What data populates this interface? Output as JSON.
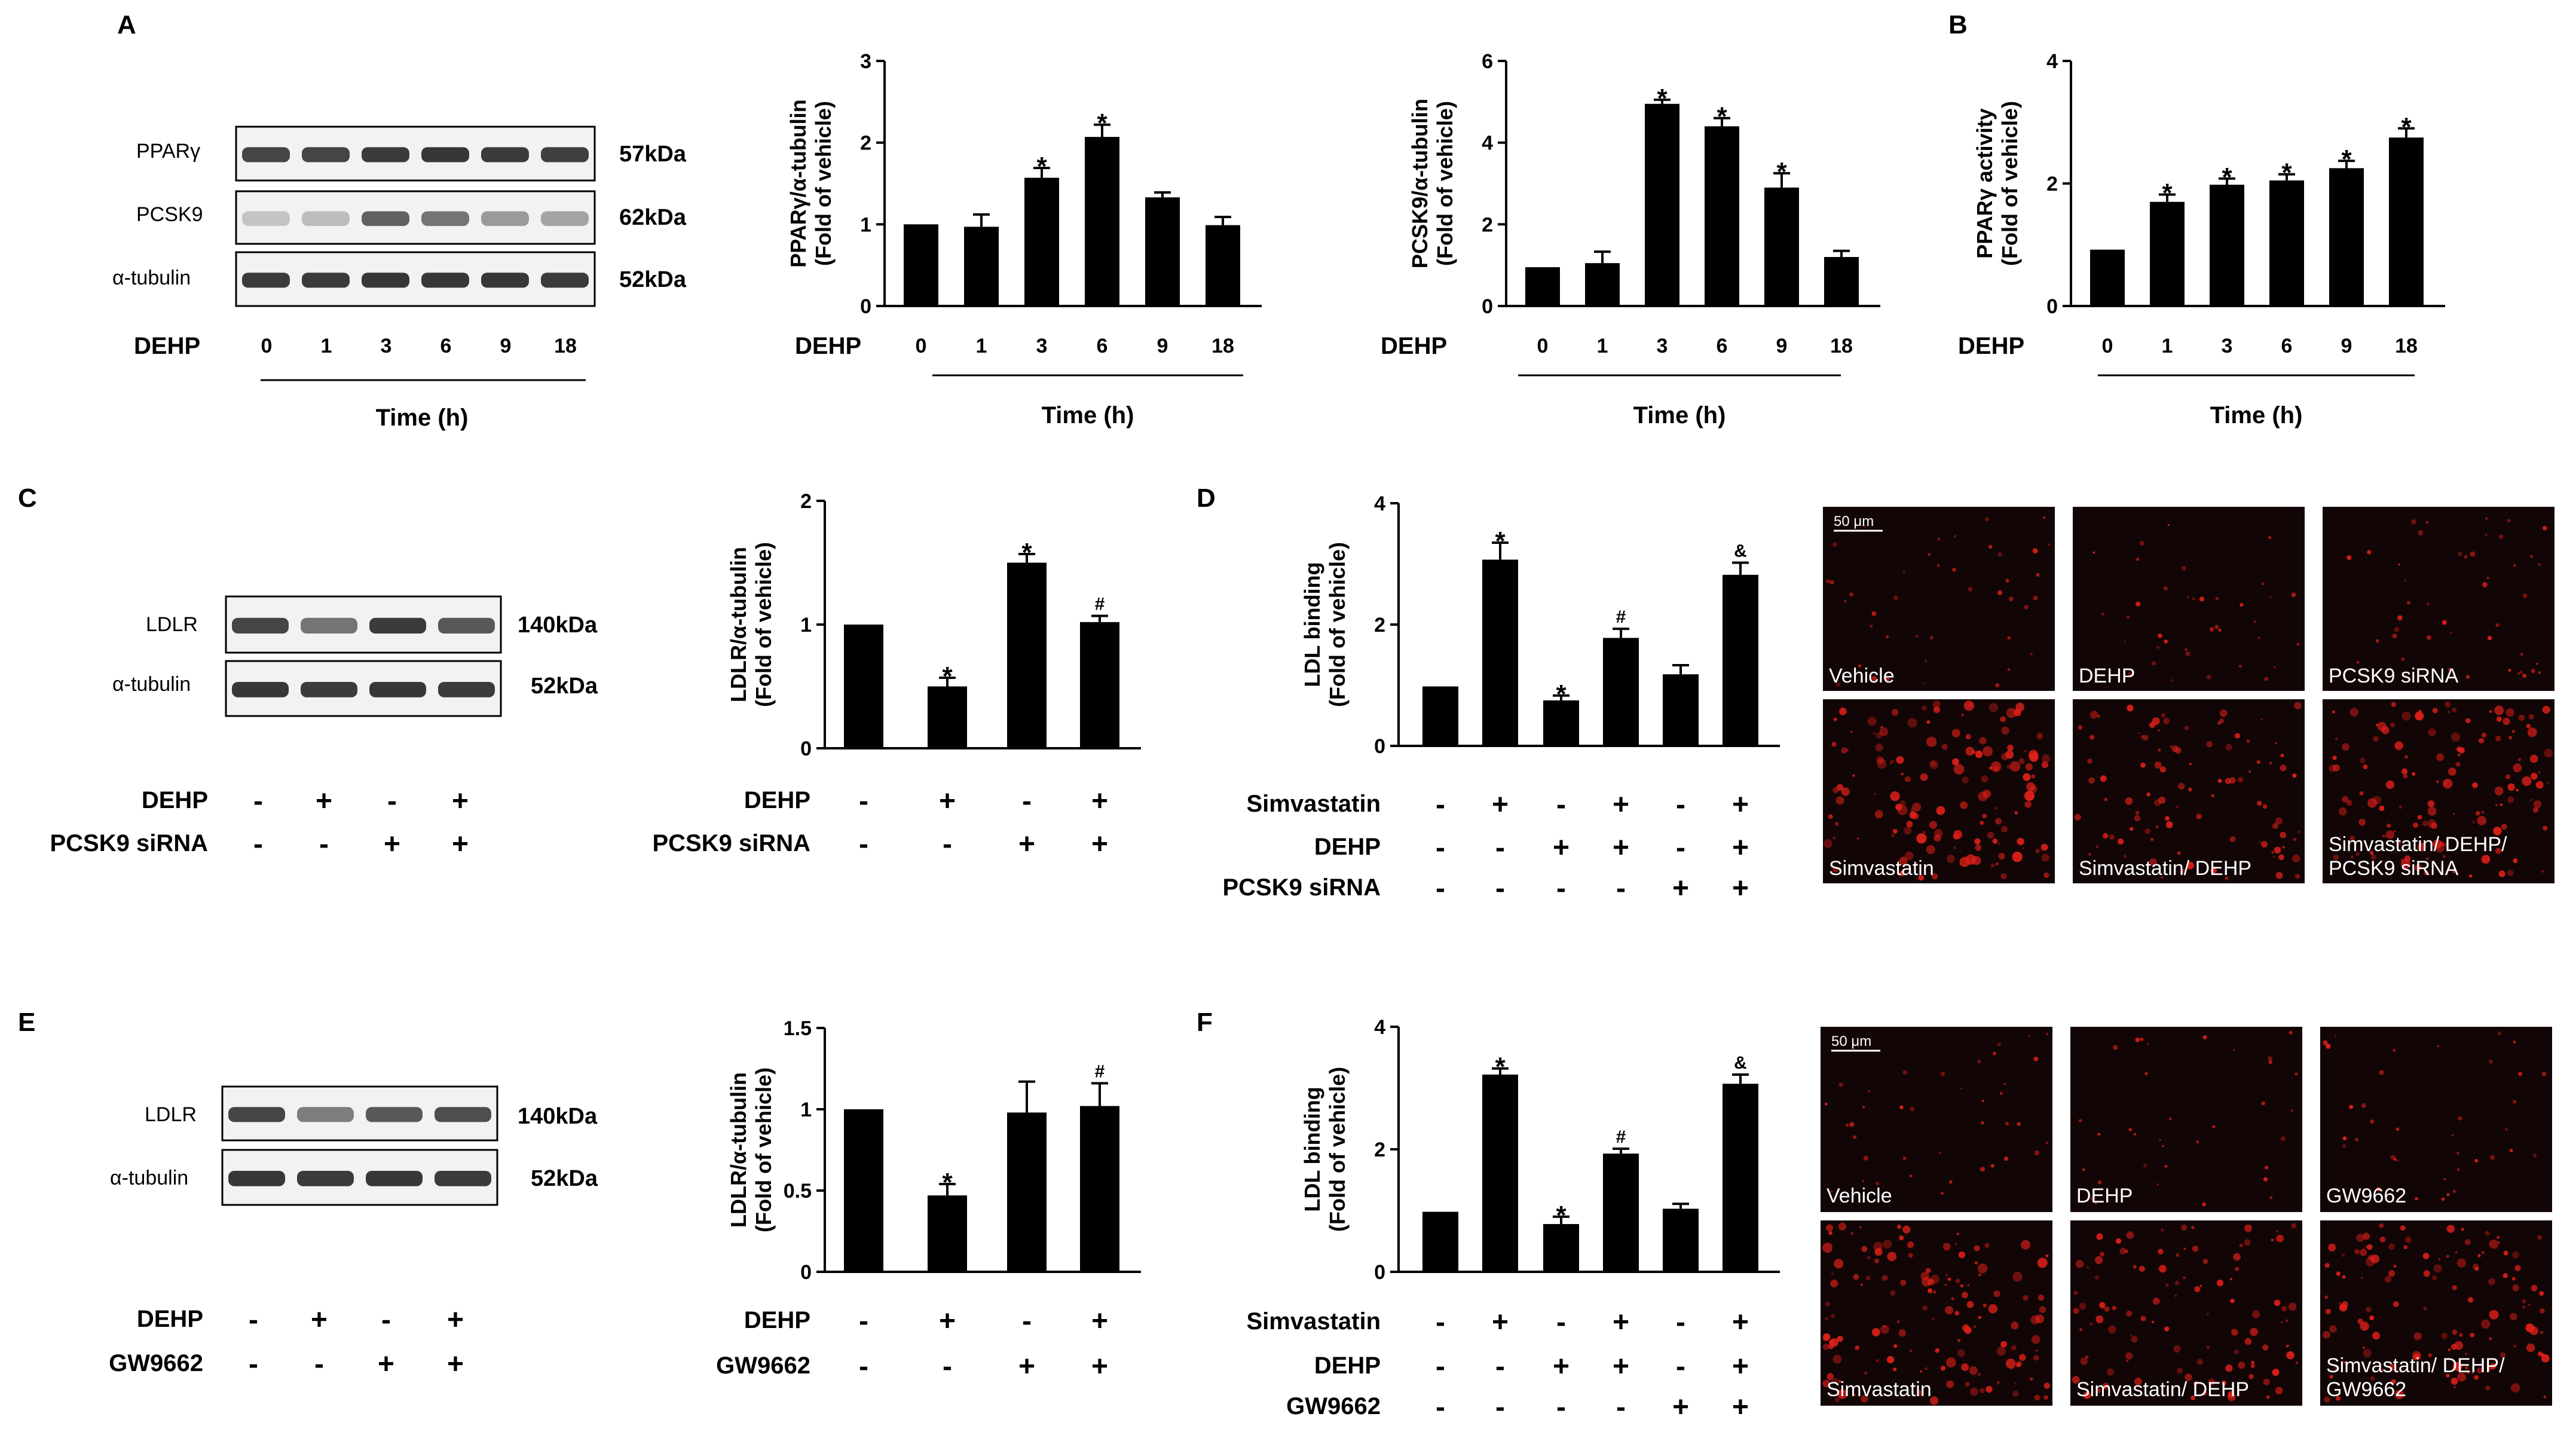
{
  "panels": {
    "A": "A",
    "B": "B",
    "C": "C",
    "D": "D",
    "E": "E",
    "F": "F"
  },
  "colors": {
    "bar": "#000000",
    "micro_bg": "#120505",
    "dot": "#e0201a"
  },
  "blots": {
    "A": {
      "bands": [
        "PPARγ",
        "PCSK9",
        "α-tubulin"
      ],
      "kda": [
        "57kDa",
        "62kDa",
        "52kDa"
      ],
      "lanes": [
        "0",
        "1",
        "3",
        "6",
        "9",
        "18"
      ],
      "row_label": "DEHP",
      "xlabel": "Time (h)"
    },
    "C": {
      "bands": [
        "LDLR",
        "α-tubulin"
      ],
      "kda": [
        "140kDa",
        "52kDa"
      ],
      "rows": [
        {
          "label": "DEHP",
          "values": [
            "-",
            "+",
            "-",
            "+"
          ]
        },
        {
          "label": "PCSK9 siRNA",
          "values": [
            "-",
            "-",
            "+",
            "+"
          ]
        }
      ]
    },
    "E": {
      "bands": [
        "LDLR",
        "α-tubulin"
      ],
      "kda": [
        "140kDa",
        "52kDa"
      ],
      "rows": [
        {
          "label": "DEHP",
          "values": [
            "-",
            "+",
            "-",
            "+"
          ]
        },
        {
          "label": "GW9662",
          "values": [
            "-",
            "-",
            "+",
            "+"
          ]
        }
      ]
    }
  },
  "micrographs": {
    "D": {
      "scale_bar": "50 μm",
      "labels": [
        "Vehicle",
        "DEHP",
        "PCSK9 siRNA",
        "Simvastatin",
        "Simvastatin/ DEHP",
        "Simvastatin/ DEHP/ PCSK9 siRNA"
      ],
      "intensity": [
        0.15,
        0.12,
        0.18,
        0.9,
        0.55,
        0.8
      ]
    },
    "F": {
      "scale_bar": "50 μm",
      "labels": [
        "Vehicle",
        "DEHP",
        "GW9662",
        "Simvastatin",
        "Simvastatin/ DEHP",
        "Simvastatin/ DEHP/ GW9662"
      ],
      "intensity": [
        0.13,
        0.1,
        0.12,
        0.85,
        0.6,
        0.75
      ]
    }
  },
  "chart_data": [
    {
      "id": "A1",
      "type": "bar",
      "ylabel": "PPARγ/α-tubulin (Fold of vehicle)",
      "ylim": [
        0,
        3
      ],
      "yticks": [
        "0",
        "1",
        "2",
        "3"
      ],
      "categories": [
        "0",
        "1",
        "3",
        "6",
        "9",
        "18"
      ],
      "values": [
        1.0,
        0.97,
        1.57,
        2.07,
        1.33,
        0.99
      ],
      "errors": [
        0,
        0.15,
        0.12,
        0.15,
        0.06,
        0.1
      ],
      "marks": [
        "",
        "",
        "*",
        "*",
        "",
        ""
      ],
      "xaxis_label": "DEHP",
      "xlabel": "Time (h)"
    },
    {
      "id": "A2",
      "type": "bar",
      "ylabel": "PCSK9/α-tubulin (Fold of vehicle)",
      "ylim": [
        0,
        6
      ],
      "yticks": [
        "0",
        "2",
        "4",
        "6"
      ],
      "categories": [
        "0",
        "1",
        "3",
        "6",
        "9",
        "18"
      ],
      "values": [
        0.95,
        1.05,
        4.95,
        4.4,
        2.9,
        1.2
      ],
      "errors": [
        0,
        0.28,
        0.1,
        0.2,
        0.35,
        0.15
      ],
      "marks": [
        "",
        "",
        "*",
        "*",
        "*",
        ""
      ],
      "xaxis_label": "DEHP",
      "xlabel": "Time (h)"
    },
    {
      "id": "B",
      "type": "bar",
      "ylabel": "PPARγ activity (Fold of vehicle)",
      "ylim": [
        0,
        4
      ],
      "yticks": [
        "0",
        "2",
        "4"
      ],
      "categories": [
        "0",
        "1",
        "3",
        "6",
        "9",
        "18"
      ],
      "values": [
        0.92,
        1.7,
        1.98,
        2.05,
        2.25,
        2.75
      ],
      "errors": [
        0,
        0.12,
        0.1,
        0.1,
        0.12,
        0.15
      ],
      "marks": [
        "",
        "*",
        "*",
        "*",
        "*",
        "*"
      ],
      "xaxis_label": "DEHP",
      "xlabel": "Time (h)"
    },
    {
      "id": "C",
      "type": "bar",
      "ylabel": "LDLR/α-tubulin (Fold of vehicle)",
      "ylim": [
        0,
        2
      ],
      "yticks": [
        "0",
        "1",
        "2"
      ],
      "values": [
        1.0,
        0.5,
        1.5,
        1.02
      ],
      "errors": [
        0,
        0.07,
        0.07,
        0.05
      ],
      "marks": [
        "",
        "*",
        "*",
        "#"
      ],
      "rows": [
        {
          "label": "DEHP",
          "values": [
            "-",
            "+",
            "-",
            "+"
          ]
        },
        {
          "label": "PCSK9 siRNA",
          "values": [
            "-",
            "-",
            "+",
            "+"
          ]
        }
      ]
    },
    {
      "id": "D",
      "type": "bar",
      "ylabel": "LDL binding (Fold of vehicle)",
      "ylim": [
        0,
        4
      ],
      "yticks": [
        "0",
        "2",
        "4"
      ],
      "values": [
        0.98,
        3.07,
        0.75,
        1.78,
        1.18,
        2.82
      ],
      "errors": [
        0,
        0.28,
        0.08,
        0.15,
        0.15,
        0.2
      ],
      "marks": [
        "",
        "*",
        "*",
        "#",
        "",
        "&"
      ],
      "rows": [
        {
          "label": "Simvastatin",
          "values": [
            "-",
            "+",
            "-",
            "+",
            "-",
            "+"
          ]
        },
        {
          "label": "DEHP",
          "values": [
            "-",
            "-",
            "+",
            "+",
            "-",
            "+"
          ]
        },
        {
          "label": "PCSK9 siRNA",
          "values": [
            "-",
            "-",
            "-",
            "-",
            "+",
            "+"
          ]
        }
      ]
    },
    {
      "id": "E",
      "type": "bar",
      "ylabel": "LDLR/α-tubulin (Fold of vehicle)",
      "ylim": [
        0,
        1.5
      ],
      "yticks": [
        "0",
        "0.5",
        "1",
        "1.5"
      ],
      "values": [
        1.0,
        0.47,
        0.98,
        1.02
      ],
      "errors": [
        0,
        0.07,
        0.19,
        0.14
      ],
      "marks": [
        "",
        "*",
        "",
        "#"
      ],
      "rows": [
        {
          "label": "DEHP",
          "values": [
            "-",
            "+",
            "-",
            "+"
          ]
        },
        {
          "label": "GW9662",
          "values": [
            "-",
            "-",
            "+",
            "+"
          ]
        }
      ]
    },
    {
      "id": "F",
      "type": "bar",
      "ylabel": "LDL binding (Fold of vehicle)",
      "ylim": [
        0,
        4
      ],
      "yticks": [
        "0",
        "2",
        "4"
      ],
      "values": [
        0.98,
        3.22,
        0.78,
        1.93,
        1.03,
        3.07
      ],
      "errors": [
        0,
        0.1,
        0.12,
        0.08,
        0.08,
        0.15
      ],
      "marks": [
        "",
        "*",
        "*",
        "#",
        "",
        "&"
      ],
      "rows": [
        {
          "label": "Simvastatin",
          "values": [
            "-",
            "+",
            "-",
            "+",
            "-",
            "+"
          ]
        },
        {
          "label": "DEHP",
          "values": [
            "-",
            "-",
            "+",
            "+",
            "-",
            "+"
          ]
        },
        {
          "label": "GW9662",
          "values": [
            "-",
            "-",
            "-",
            "-",
            "+",
            "+"
          ]
        }
      ]
    }
  ]
}
